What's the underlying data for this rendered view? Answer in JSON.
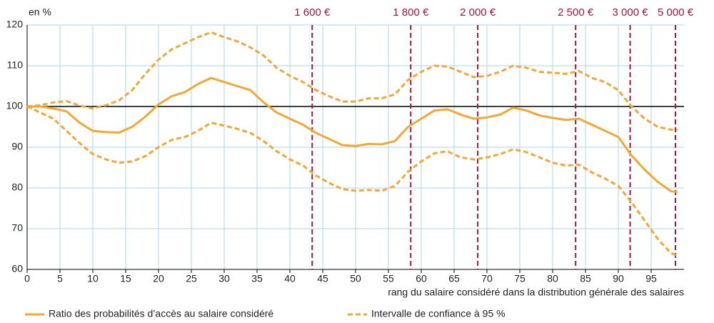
{
  "chart_data": {
    "type": "line",
    "y_label": "en %",
    "x_label": "rang du salaire considéré dans la distribution générale des salaires",
    "x": [
      0,
      2,
      4,
      6,
      8,
      10,
      12,
      14,
      16,
      18,
      20,
      22,
      24,
      26,
      28,
      30,
      32,
      34,
      36,
      38,
      40,
      42,
      44,
      46,
      48,
      50,
      52,
      54,
      56,
      58,
      60,
      62,
      64,
      66,
      68,
      70,
      72,
      74,
      76,
      78,
      80,
      82,
      84,
      86,
      88,
      90,
      92,
      94,
      96,
      98,
      99
    ],
    "series": [
      {
        "name": "Ratio des probabilités d’accès au salaire considéré",
        "color": "#f4a733",
        "dash": false,
        "values": [
          100,
          100,
          99.5,
          98.8,
          96,
          94,
          93.7,
          93.6,
          95,
          97.5,
          100.5,
          102.5,
          103.5,
          105.5,
          107,
          106,
          105,
          104,
          101,
          98.5,
          97,
          95.5,
          93.5,
          92,
          90.5,
          90.3,
          90.8,
          90.7,
          91.5,
          95,
          97,
          99,
          99.3,
          98,
          97,
          97.3,
          98,
          99.7,
          99,
          97.8,
          97.2,
          96.7,
          97,
          95.5,
          94,
          92.5,
          88,
          84.5,
          81.5,
          79.2,
          79
        ]
      },
      {
        "name": "Intervalle de confiance à 95 %",
        "color": "#f4a733",
        "dash": true,
        "values": [
          100,
          100.3,
          101,
          101.3,
          100.2,
          99.5,
          100.3,
          101.5,
          104,
          108,
          111.5,
          114,
          115.5,
          117,
          118.2,
          117,
          116,
          114.5,
          112.5,
          109.5,
          107.5,
          106,
          104,
          102.5,
          101.2,
          101.2,
          102,
          102,
          103,
          106.5,
          108.5,
          110,
          109.8,
          108.5,
          107.2,
          107.5,
          108.5,
          110,
          109.5,
          108.5,
          108.3,
          108,
          108.7,
          107,
          106,
          104,
          100,
          97,
          95,
          94.3,
          94.3
        ]
      },
      {
        "color": "#f4a733",
        "dash": true,
        "values": [
          100,
          98.5,
          97,
          94,
          91,
          88.3,
          87,
          86.2,
          86.5,
          87.8,
          90,
          91.8,
          92.5,
          94,
          96,
          95.3,
          94.5,
          93.5,
          91.5,
          89,
          87,
          85.5,
          83,
          81.2,
          79.7,
          79.3,
          79.5,
          79.3,
          80.5,
          84,
          86.5,
          88.5,
          89,
          87.5,
          87,
          87.5,
          88.3,
          89.5,
          88.8,
          87.5,
          86.2,
          85.5,
          85.7,
          83.8,
          82.3,
          80.5,
          76.5,
          72,
          67.5,
          64,
          63.3
        ]
      }
    ],
    "reference_y": 100,
    "reference_lines": [
      {
        "x": 43.4,
        "label": "1 600 €"
      },
      {
        "x": 58.4,
        "label": "1 800 €"
      },
      {
        "x": 68.6,
        "label": "2 000 €"
      },
      {
        "x": 83.5,
        "label": "2 500 €"
      },
      {
        "x": 91.8,
        "label": "3 000 €"
      },
      {
        "x": 98.7,
        "label": "5 000 €"
      }
    ],
    "reference_color": "#a0183c",
    "xlim": [
      0,
      100
    ],
    "ylim": [
      60,
      120
    ],
    "xticks": [
      0,
      5,
      10,
      15,
      20,
      25,
      30,
      35,
      40,
      45,
      50,
      55,
      60,
      65,
      70,
      75,
      80,
      85,
      90,
      95
    ],
    "yticks": [
      60,
      70,
      80,
      90,
      100,
      110,
      120
    ],
    "grid": true
  }
}
